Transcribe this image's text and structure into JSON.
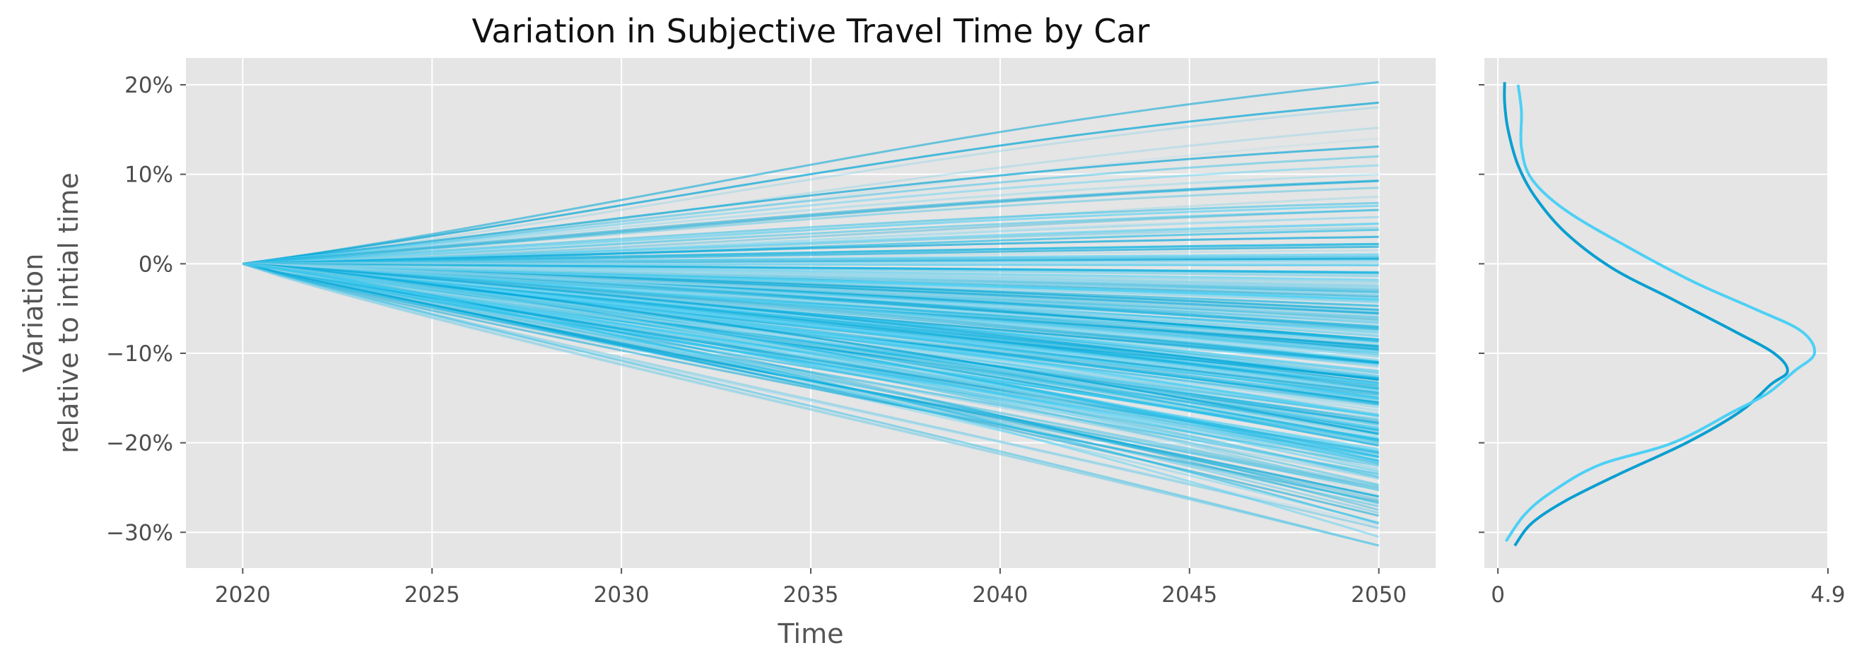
{
  "chart_data": [
    {
      "type": "line",
      "title": "Variation in Subjective Travel Time by Car",
      "xlabel": "Time",
      "ylabel": [
        "Variation",
        "relative to intial time"
      ],
      "x_ticks": [
        2020,
        2025,
        2030,
        2035,
        2040,
        2045,
        2050
      ],
      "y_ticks": [
        0.2,
        0.1,
        0.0,
        -0.1,
        -0.2,
        -0.3
      ],
      "y_tick_labels": [
        "20%",
        "10%",
        "0%",
        "−10%",
        "−20%",
        "−30%"
      ],
      "xlim": [
        2018.5,
        2051.5
      ],
      "ylim": [
        -0.34,
        0.23
      ],
      "grid": true,
      "background_color": "#e5e5e5",
      "line_colors": [
        "#00a5d6",
        "#29bde6",
        "#4dd0f5",
        "#7fcfe5",
        "#a9dcec"
      ],
      "series_description": "Ensemble of simulated trajectories starting at 0% in 2020 and fanning out by 2050",
      "x_start": 2020,
      "x_end": 2050,
      "num_series_approx": 300,
      "final_value_range": [
        -0.315,
        0.203
      ],
      "final_value_mode": -0.12,
      "final_values_sample": [
        0.203,
        0.18,
        0.175,
        0.152,
        0.14,
        0.131,
        0.12,
        0.11,
        0.1,
        0.093,
        0.085,
        0.075,
        0.068,
        0.06,
        0.052,
        0.045,
        0.038,
        0.03,
        0.022,
        0.015,
        0.008,
        0.0,
        -0.01,
        -0.02,
        -0.03,
        -0.04,
        -0.05,
        -0.06,
        -0.07,
        -0.08,
        -0.09,
        -0.1,
        -0.11,
        -0.12,
        -0.13,
        -0.14,
        -0.15,
        -0.16,
        -0.17,
        -0.18,
        -0.19,
        -0.2,
        -0.21,
        -0.22,
        -0.23,
        -0.24,
        -0.25,
        -0.26,
        -0.275,
        -0.29,
        -0.305,
        -0.315
      ]
    },
    {
      "type": "line",
      "description": "Marginal density (KDE) of final 2050 variation",
      "x_ticks": [
        0,
        4.9
      ],
      "x_tick_labels": [
        "0",
        "4.9"
      ],
      "xlim": [
        -0.2,
        4.9
      ],
      "ylim": [
        -0.34,
        0.23
      ],
      "grid": true,
      "series": [
        {
          "color": "#0a9fd0",
          "points": [
            [
              0.25,
              -0.315
            ],
            [
              0.5,
              -0.29
            ],
            [
              1.0,
              -0.265
            ],
            [
              1.8,
              -0.235
            ],
            [
              2.8,
              -0.2
            ],
            [
              3.6,
              -0.165
            ],
            [
              4.05,
              -0.135
            ],
            [
              4.3,
              -0.12
            ],
            [
              4.1,
              -0.1
            ],
            [
              3.5,
              -0.075
            ],
            [
              2.6,
              -0.04
            ],
            [
              1.7,
              -0.005
            ],
            [
              1.0,
              0.035
            ],
            [
              0.55,
              0.075
            ],
            [
              0.3,
              0.11
            ],
            [
              0.15,
              0.15
            ],
            [
              0.1,
              0.18
            ],
            [
              0.1,
              0.203
            ]
          ]
        },
        {
          "color": "#4dd0f5",
          "points": [
            [
              0.12,
              -0.31
            ],
            [
              0.4,
              -0.28
            ],
            [
              0.8,
              -0.255
            ],
            [
              1.5,
              -0.225
            ],
            [
              2.6,
              -0.2
            ],
            [
              3.5,
              -0.165
            ],
            [
              4.0,
              -0.145
            ],
            [
              4.4,
              -0.12
            ],
            [
              4.7,
              -0.1
            ],
            [
              4.5,
              -0.075
            ],
            [
              3.8,
              -0.05
            ],
            [
              2.9,
              -0.02
            ],
            [
              1.9,
              0.02
            ],
            [
              1.0,
              0.06
            ],
            [
              0.5,
              0.095
            ],
            [
              0.35,
              0.13
            ],
            [
              0.35,
              0.17
            ],
            [
              0.3,
              0.2
            ]
          ]
        }
      ]
    }
  ]
}
